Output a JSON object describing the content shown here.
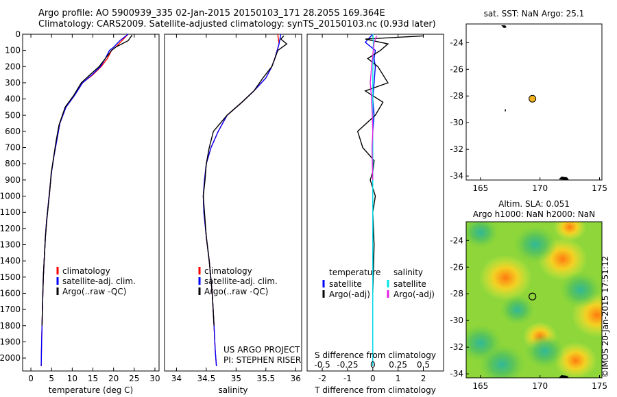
{
  "header": {
    "line1": "Argo profile: AO 5900939_335 02-Jan-2015 20150103_171 28.205S 169.364E",
    "line2": "Climatology: CARS2009. Satellite-adjusted climatology: synTS_20150103.nc (0.93d later)"
  },
  "stamp": "©IMOS 20-Jan-2015 17:51:12",
  "colors": {
    "climatology": "#ff0000",
    "satellite": "#0000ff",
    "argo": "#000000",
    "sal_satellite": "#00e5e5",
    "sal_argo": "#e020e0"
  },
  "chart_data": [
    {
      "type": "line",
      "xlabel": "temperature (deg C)",
      "xlim": [
        -2,
        31
      ],
      "ylim": [
        2080,
        0
      ],
      "y_reversed": true,
      "xticks": [
        0,
        5,
        10,
        15,
        20,
        25,
        30
      ],
      "yticks": [
        0,
        100,
        200,
        300,
        400,
        500,
        600,
        700,
        800,
        900,
        1000,
        1100,
        1200,
        1300,
        1400,
        1500,
        1600,
        1700,
        1800,
        1900,
        2000
      ],
      "legend": [
        "climatology",
        "satellite-adj. clim.",
        "Argo(..raw -QC)"
      ],
      "series": [
        {
          "name": "climatology",
          "color_key": "climatology",
          "x": [
            23.5,
            22,
            20.5,
            19.5,
            18.5,
            17,
            15,
            12.5,
            10.5,
            8.5,
            7,
            6.3,
            5.6,
            5.0,
            4.6,
            4.2,
            3.8,
            3.5,
            3.2,
            3.0,
            2.9,
            2.8,
            2.7,
            2.6,
            2.5
          ],
          "y": [
            0,
            40,
            80,
            100,
            150,
            200,
            250,
            300,
            380,
            450,
            550,
            650,
            750,
            850,
            950,
            1050,
            1150,
            1250,
            1400,
            1500,
            1600,
            1700,
            1800,
            1900,
            2050
          ]
        },
        {
          "name": "satellite-adj. clim.",
          "color_key": "satellite",
          "x": [
            23.5,
            21.5,
            20,
            19,
            18,
            16.8,
            14.8,
            12.5,
            10.5,
            8.5,
            7,
            6.3,
            5.6,
            5.0,
            4.6,
            4.2,
            3.8,
            3.5,
            3.2,
            3.0,
            2.9,
            2.8,
            2.7,
            2.6,
            2.5
          ],
          "y": [
            0,
            40,
            80,
            100,
            150,
            200,
            250,
            300,
            380,
            450,
            550,
            650,
            750,
            850,
            950,
            1050,
            1150,
            1250,
            1400,
            1500,
            1600,
            1700,
            1800,
            1900,
            2050
          ]
        },
        {
          "name": "Argo(..raw -QC)",
          "color_key": "argo",
          "x": [
            24.5,
            23.5,
            20.5,
            19.5,
            18,
            16.5,
            14.3,
            12.2,
            10.3,
            8.3,
            6.8,
            6.1,
            5.5,
            4.9,
            4.6,
            4.2,
            3.8,
            3.5,
            3.2,
            3.0,
            2.9,
            2.8,
            2.7
          ],
          "y": [
            5,
            40,
            80,
            100,
            150,
            200,
            250,
            300,
            380,
            450,
            560,
            660,
            760,
            860,
            960,
            1060,
            1160,
            1260,
            1400,
            1500,
            1600,
            1700,
            1800
          ]
        }
      ]
    },
    {
      "type": "line",
      "xlabel": "salinity",
      "xlim": [
        33.8,
        36.1
      ],
      "ylim": [
        2080,
        0
      ],
      "y_reversed": true,
      "xticks": [
        34,
        34.5,
        35,
        35.5,
        36
      ],
      "legend": [
        "climatology",
        "satellite-adj. clim.",
        "Argo(..raw -QC)"
      ],
      "annotation": [
        "US ARGO PROJECT",
        "PI: STEPHEN RISER"
      ],
      "series": [
        {
          "name": "climatology",
          "color_key": "climatology",
          "x": [
            35.7,
            35.72,
            35.65,
            35.6,
            35.5,
            35.3,
            35.1,
            34.85,
            34.7,
            34.58,
            34.5,
            34.47,
            34.45,
            34.46,
            34.5,
            34.55,
            34.6,
            34.63,
            34.65,
            34.67
          ],
          "y": [
            0,
            60,
            150,
            200,
            270,
            350,
            420,
            500,
            600,
            700,
            800,
            900,
            1000,
            1100,
            1250,
            1400,
            1600,
            1800,
            1950,
            2050
          ]
        },
        {
          "name": "satellite-adj. clim.",
          "color_key": "satellite",
          "x": [
            35.75,
            35.72,
            35.65,
            35.6,
            35.5,
            35.3,
            35.1,
            34.85,
            34.7,
            34.58,
            34.5,
            34.47,
            34.45,
            34.46,
            34.5,
            34.55,
            34.6,
            34.63,
            34.65,
            34.67
          ],
          "y": [
            0,
            60,
            150,
            200,
            270,
            350,
            420,
            500,
            600,
            700,
            800,
            900,
            1000,
            1100,
            1250,
            1400,
            1600,
            1800,
            1950,
            2050
          ]
        },
        {
          "name": "Argo(..raw -QC)",
          "color_key": "argo",
          "x": [
            35.8,
            35.75,
            35.85,
            35.7,
            35.65,
            35.6,
            35.45,
            35.3,
            35.1,
            34.85,
            34.62,
            34.55,
            34.5,
            34.48,
            34.45,
            34.47,
            34.5,
            34.55,
            34.6,
            34.63
          ],
          "y": [
            10,
            30,
            60,
            100,
            150,
            200,
            270,
            350,
            420,
            500,
            600,
            700,
            800,
            900,
            1000,
            1100,
            1250,
            1400,
            1600,
            1800
          ]
        }
      ]
    },
    {
      "type": "line",
      "xlabel": "T difference from climatology",
      "top_axis_label": "S difference from climatology",
      "xlim": [
        -2.6,
        2.8
      ],
      "ylim": [
        2080,
        0
      ],
      "y_reversed": true,
      "xticks": [
        -2,
        -1,
        0,
        1,
        2
      ],
      "top_xticks": [
        -0.5,
        -0.25,
        0,
        0.25,
        0.5
      ],
      "legend_groups": [
        {
          "title": "temperature",
          "items": [
            "satellite",
            "Argo(-adj)"
          ]
        },
        {
          "title": "salinity",
          "items": [
            "satellite",
            "Argo(-adj)"
          ]
        }
      ],
      "series": [
        {
          "name": "temperature satellite",
          "color_key": "satellite",
          "x": [
            0,
            -0.3,
            0.1,
            0.05,
            0.1,
            0.05,
            0,
            0.05,
            0,
            0,
            0,
            0,
            0,
            0,
            0,
            0,
            0
          ],
          "y": [
            0,
            50,
            100,
            150,
            200,
            300,
            400,
            500,
            600,
            700,
            800,
            900,
            1000,
            1200,
            1500,
            1800,
            2050
          ]
        },
        {
          "name": "temperature Argo(-adj)",
          "color_key": "argo",
          "x": [
            2.0,
            -0.3,
            0.6,
            0.3,
            -0.2,
            0.2,
            0.6,
            -0.3,
            0.4,
            0.1,
            -0.6,
            -0.4,
            0.05,
            0,
            -0.1,
            0.1,
            0,
            0.05,
            0
          ],
          "y": [
            10,
            30,
            60,
            100,
            150,
            200,
            300,
            350,
            420,
            500,
            600,
            700,
            780,
            850,
            900,
            1000,
            1100,
            1300,
            1600
          ]
        },
        {
          "name": "salinity satellite",
          "color_key": "sal_satellite",
          "x": [
            0,
            0.02,
            0.01,
            0,
            0,
            0,
            0,
            0,
            0,
            0,
            0,
            0
          ],
          "y": [
            0,
            50,
            150,
            250,
            400,
            600,
            800,
            1000,
            1300,
            1600,
            1900,
            2050
          ]
        },
        {
          "name": "salinity Argo(-adj)",
          "color_key": "sal_argo",
          "x": [
            0.15,
            0.05,
            0.02,
            -0.05,
            -0.1,
            -0.05,
            -0.02,
            0,
            -0.03,
            -0.02,
            0
          ],
          "y": [
            10,
            50,
            100,
            200,
            300,
            400,
            500,
            600,
            700,
            800,
            900
          ]
        }
      ]
    },
    {
      "type": "scatter",
      "title": "sat. SST: NaN Argo: 25.1",
      "xlim": [
        163.8,
        175.2
      ],
      "ylim": [
        -34.3,
        -22.6
      ],
      "xticks": [
        165,
        170,
        175
      ],
      "yticks": [
        -24,
        -26,
        -28,
        -30,
        -32,
        -34
      ],
      "points": [
        {
          "x": 169.364,
          "y": -28.205,
          "color": "#f0b020"
        }
      ]
    },
    {
      "type": "heatmap",
      "title": "Altim. SLA: 0.051",
      "subtitle": "Argo h1000: NaN h2000: NaN",
      "xlim": [
        163.8,
        175.2
      ],
      "ylim": [
        -34.3,
        -22.6
      ],
      "xticks": [
        165,
        170,
        175
      ],
      "yticks": [
        -24,
        -26,
        -28,
        -30,
        -32,
        -34
      ],
      "points": [
        {
          "x": 169.364,
          "y": -28.205
        }
      ],
      "blobs": [
        {
          "x": 167.1,
          "y": -26.8,
          "value": 0.9
        },
        {
          "x": 171.9,
          "y": -25.4,
          "value": 0.8
        },
        {
          "x": 174.8,
          "y": -29.6,
          "value": 0.85
        },
        {
          "x": 173.0,
          "y": -33.0,
          "value": 0.6
        },
        {
          "x": 170.0,
          "y": -31.2,
          "value": 0.35
        },
        {
          "x": 165.0,
          "y": -31.7,
          "value": -0.6
        },
        {
          "x": 166.8,
          "y": -33.3,
          "value": -0.7
        },
        {
          "x": 169.6,
          "y": -24.3,
          "value": -0.6
        },
        {
          "x": 170.4,
          "y": -32.3,
          "value": -0.5
        },
        {
          "x": 173.4,
          "y": -27.7,
          "value": -0.55
        },
        {
          "x": 165.0,
          "y": -23.4,
          "value": -0.4
        },
        {
          "x": 168.1,
          "y": -29.2,
          "value": -0.35
        },
        {
          "x": 172.5,
          "y": -23.0,
          "value": 0.3
        }
      ]
    }
  ]
}
